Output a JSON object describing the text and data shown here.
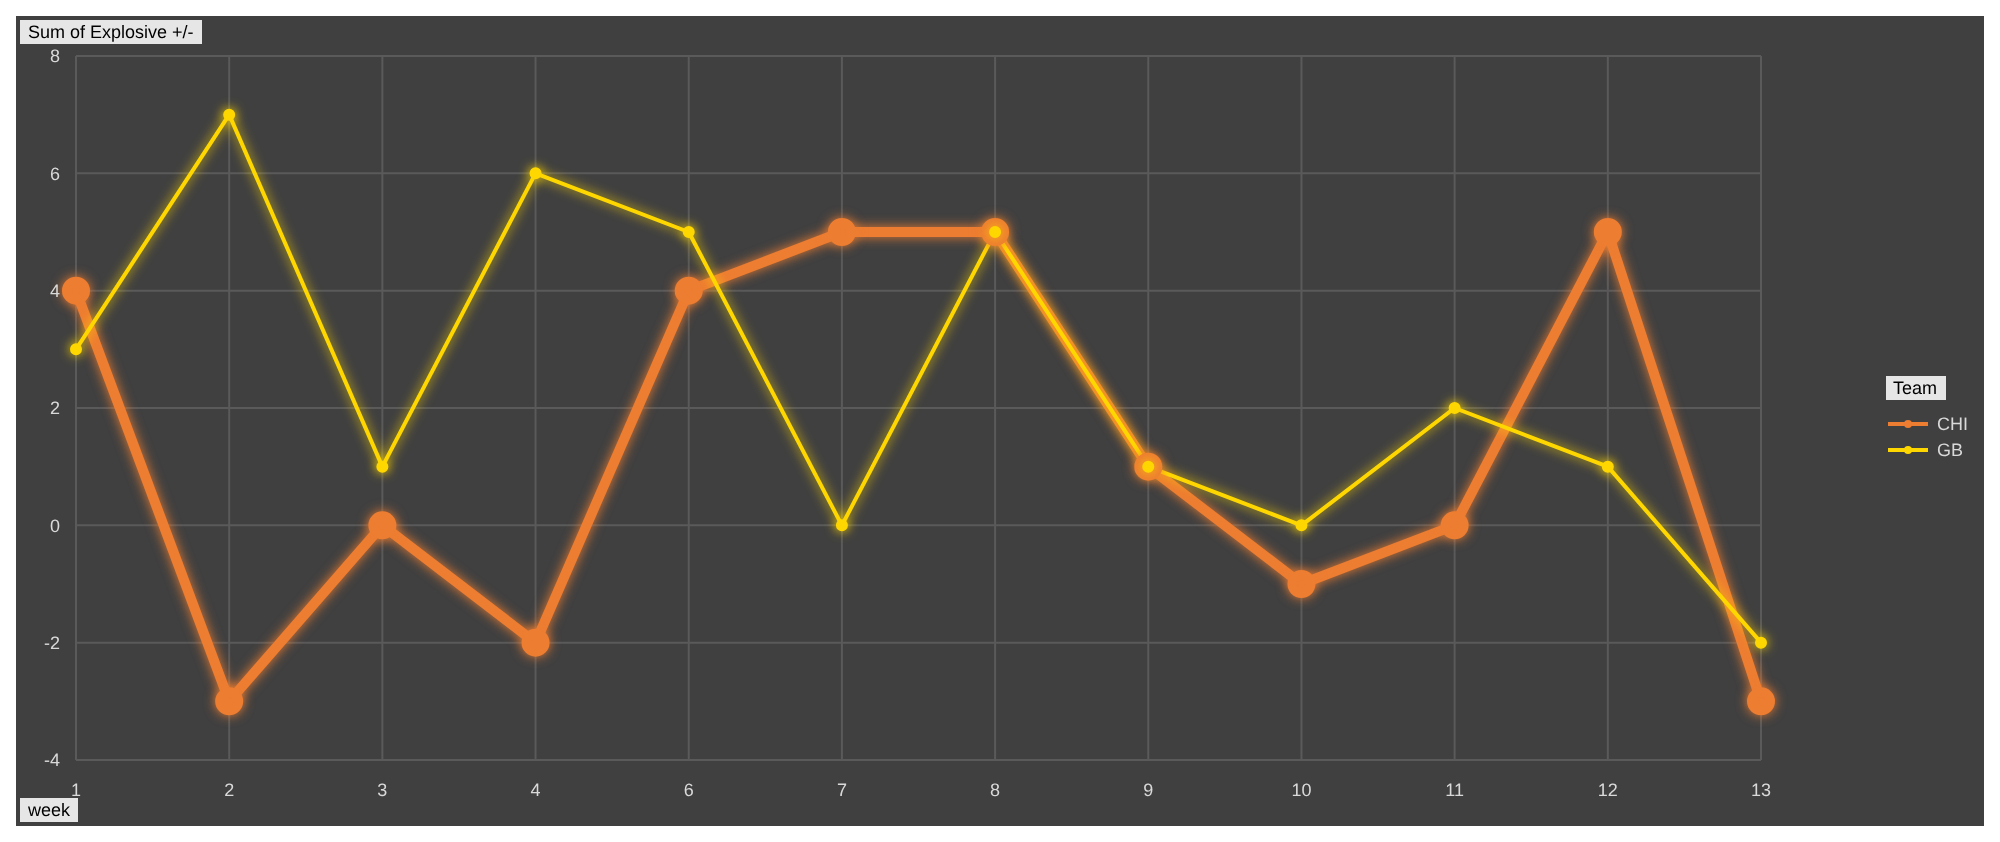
{
  "chart_data": {
    "type": "line",
    "title": "Sum of Explosive +/-",
    "xlabel": "week",
    "legend_title": "Team",
    "categories": [
      "1",
      "2",
      "3",
      "4",
      "6",
      "7",
      "8",
      "9",
      "10",
      "11",
      "12",
      "13"
    ],
    "series": [
      {
        "name": "CHI",
        "color": "#ed7d31",
        "values": [
          4,
          -3,
          0,
          -2,
          4,
          5,
          5,
          1,
          -1,
          0,
          5,
          -3
        ]
      },
      {
        "name": "GB",
        "color": "#ffd700",
        "values": [
          3,
          7,
          1,
          6,
          5,
          0,
          5,
          1,
          0,
          2,
          1,
          -2
        ]
      }
    ],
    "ylim": [
      -4,
      8
    ],
    "yticks": [
      -4,
      -2,
      0,
      2,
      4,
      6,
      8
    ],
    "grid": true,
    "legend": "right",
    "marker": "circle",
    "line_style": "solid"
  }
}
